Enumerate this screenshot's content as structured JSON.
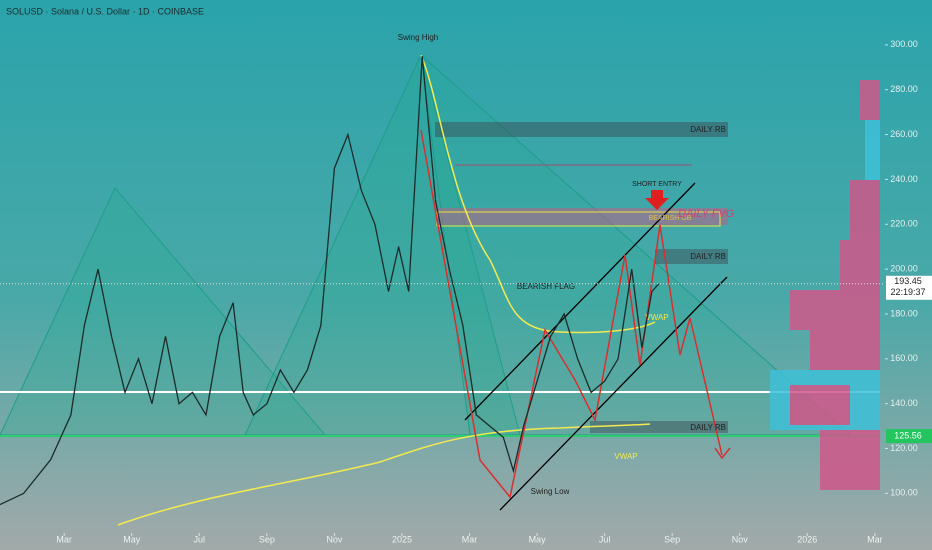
{
  "chart_data": {
    "type": "line",
    "title": "SOLUSD · Solana / U.S. Dollar · 1D · COINBASE",
    "x": [
      0.1,
      0.8,
      1.6,
      2.2,
      2.6,
      3.0,
      3.4,
      3.8,
      4.2,
      4.6,
      5.0,
      5.4,
      5.8,
      6.2,
      6.6,
      7.0,
      7.3,
      7.6,
      8.0,
      8.4,
      8.8,
      9.2,
      9.6,
      10.0,
      10.4,
      10.8,
      11.2,
      11.6,
      11.9,
      12.2,
      12.6,
      13.0,
      13.4,
      13.8,
      14.2,
      14.6,
      15.0,
      15.3,
      15.6,
      16.0,
      16.4,
      16.8,
      17.2,
      17.6,
      18.0,
      18.4,
      18.8,
      19.1,
      19.4,
      19.6
    ],
    "values": [
      95,
      100,
      115,
      135,
      175,
      200,
      170,
      145,
      160,
      140,
      170,
      140,
      145,
      135,
      170,
      185,
      145,
      135,
      140,
      155,
      145,
      155,
      175,
      245,
      260,
      235,
      220,
      190,
      210,
      190,
      295,
      230,
      200,
      175,
      135,
      130,
      125,
      110,
      130,
      150,
      170,
      180,
      160,
      145,
      150,
      160,
      200,
      165,
      190,
      193.45
    ],
    "color": "#1b2b2a",
    "xlim": [
      0.1,
      26.3
    ],
    "ylim": [
      85,
      320
    ],
    "xticks": [
      {
        "value": 2,
        "label": "Mar"
      },
      {
        "value": 4,
        "label": "May"
      },
      {
        "value": 6,
        "label": "Jul"
      },
      {
        "value": 8,
        "label": "Sep"
      },
      {
        "value": 10,
        "label": "Nov"
      },
      {
        "value": 12,
        "label": "2025"
      },
      {
        "value": 14,
        "label": "Mar"
      },
      {
        "value": 16,
        "label": "May"
      },
      {
        "value": 18,
        "label": "Jul"
      },
      {
        "value": 20,
        "label": "Sep"
      },
      {
        "value": 22,
        "label": "Nov"
      },
      {
        "value": 24,
        "label": "2026"
      },
      {
        "value": 26,
        "label": "Mar"
      }
    ],
    "yticks": [
      {
        "value": 100,
        "label": "100.00"
      },
      {
        "value": 120,
        "label": "120.00"
      },
      {
        "value": 140,
        "label": "140.00"
      },
      {
        "value": 160,
        "label": "160.00"
      },
      {
        "value": 180,
        "label": "180.00"
      },
      {
        "value": 200,
        "label": "200.00"
      },
      {
        "value": 220,
        "label": "220.00"
      },
      {
        "value": 240,
        "label": "240.00"
      },
      {
        "value": 260,
        "label": "260.00"
      },
      {
        "value": 280,
        "label": "280.00"
      },
      {
        "value": 300,
        "label": "300.00"
      }
    ],
    "last_price": 193.45,
    "countdown": "22:19:37",
    "level_price": 125.56,
    "annotations": [
      "Swing High",
      "Swing Low",
      "DAILY RB",
      "DAILY RB",
      "DAILY RB",
      "SHORT ENTRY",
      "BEARISH OB",
      "DAILY FVG",
      "BEARISH FLAG",
      "VWAP",
      "VWAP"
    ]
  }
}
